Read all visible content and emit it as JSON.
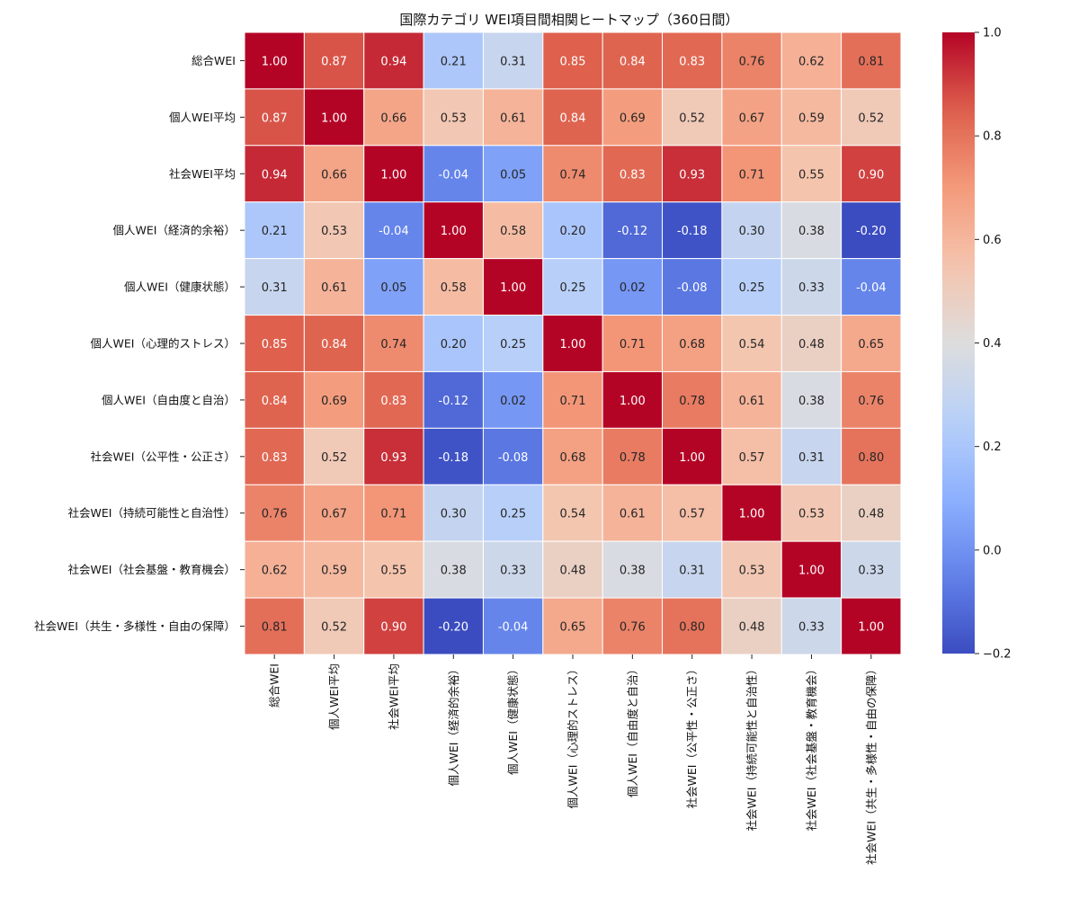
{
  "chart_data": {
    "type": "heatmap",
    "title": "国際カテゴリ WEI項目間相関ヒートマップ（360日間）",
    "xlabel": "",
    "ylabel": "",
    "labels": [
      "総合WEI",
      "個人WEI平均",
      "社会WEI平均",
      "個人WEI（経済的余裕）",
      "個人WEI（健康状態）",
      "個人WEI（心理的ストレス）",
      "個人WEI（自由度と自治）",
      "社会WEI（公平性・公正さ）",
      "社会WEI（持続可能性と自治性）",
      "社会WEI（社会基盤・教育機会）",
      "社会WEI（共生・多様性・自由の保障）"
    ],
    "matrix": [
      [
        1.0,
        0.87,
        0.94,
        0.21,
        0.31,
        0.85,
        0.84,
        0.83,
        0.76,
        0.62,
        0.81
      ],
      [
        0.87,
        1.0,
        0.66,
        0.53,
        0.61,
        0.84,
        0.69,
        0.52,
        0.67,
        0.59,
        0.52
      ],
      [
        0.94,
        0.66,
        1.0,
        -0.04,
        0.05,
        0.74,
        0.83,
        0.93,
        0.71,
        0.55,
        0.9
      ],
      [
        0.21,
        0.53,
        -0.04,
        1.0,
        0.58,
        0.2,
        -0.12,
        -0.18,
        0.3,
        0.38,
        -0.2
      ],
      [
        0.31,
        0.61,
        0.05,
        0.58,
        1.0,
        0.25,
        0.02,
        -0.08,
        0.25,
        0.33,
        -0.04
      ],
      [
        0.85,
        0.84,
        0.74,
        0.2,
        0.25,
        1.0,
        0.71,
        0.68,
        0.54,
        0.48,
        0.65
      ],
      [
        0.84,
        0.69,
        0.83,
        -0.12,
        0.02,
        0.71,
        1.0,
        0.78,
        0.61,
        0.38,
        0.76
      ],
      [
        0.83,
        0.52,
        0.93,
        -0.18,
        -0.08,
        0.68,
        0.78,
        1.0,
        0.57,
        0.31,
        0.8
      ],
      [
        0.76,
        0.67,
        0.71,
        0.3,
        0.25,
        0.54,
        0.61,
        0.57,
        1.0,
        0.53,
        0.48
      ],
      [
        0.62,
        0.59,
        0.55,
        0.38,
        0.33,
        0.48,
        0.38,
        0.31,
        0.53,
        1.0,
        0.33
      ],
      [
        0.81,
        0.52,
        0.9,
        -0.2,
        -0.04,
        0.65,
        0.76,
        0.8,
        0.48,
        0.33,
        1.0
      ]
    ],
    "colormap": "coolwarm",
    "vmin": -0.2,
    "vmax": 1.0,
    "colorbar_ticks": [
      -0.2,
      0.0,
      0.2,
      0.4,
      0.6,
      0.8,
      1.0
    ],
    "colorbar_tick_labels": [
      "−0.2",
      "0.0",
      "0.2",
      "0.4",
      "0.6",
      "0.8",
      "1.0"
    ],
    "annotate": true,
    "legend": "colorbar-right"
  }
}
